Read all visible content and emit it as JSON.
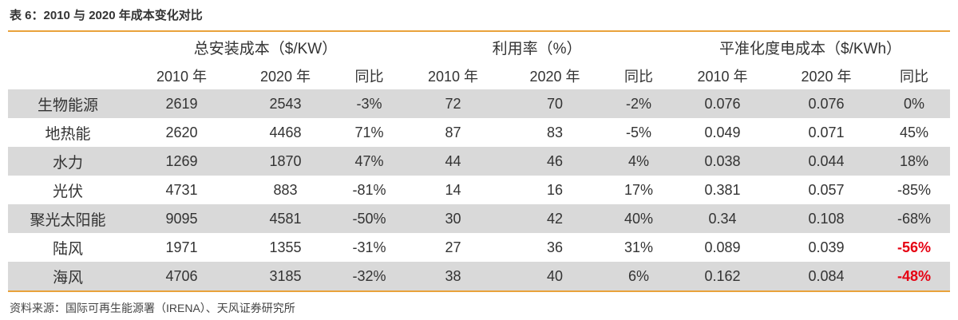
{
  "title": "表 6：2010 与 2020 年成本变化对比",
  "table": {
    "group_headers": [
      "总安装成本（$/KW）",
      "利用率（%）",
      "平准化度电成本（$/KWh）"
    ],
    "sub_headers": [
      "2010 年",
      "2020 年",
      "同比",
      "2010 年",
      "2020 年",
      "同比",
      "2010 年",
      "2020 年",
      "同比"
    ],
    "emphasis_color": "#e60012",
    "rows": [
      [
        "生物能源",
        "2619",
        "2543",
        "-3%",
        "72",
        "70",
        "-2%",
        "0.076",
        "0.076",
        "0%"
      ],
      [
        "地热能",
        "2620",
        "4468",
        "71%",
        "87",
        "83",
        "-5%",
        "0.049",
        "0.071",
        "45%"
      ],
      [
        "水力",
        "1269",
        "1870",
        "47%",
        "44",
        "46",
        "4%",
        "0.038",
        "0.044",
        "18%"
      ],
      [
        "光伏",
        "4731",
        "883",
        "-81%",
        "14",
        "16",
        "17%",
        "0.381",
        "0.057",
        "-85%"
      ],
      [
        "聚光太阳能",
        "9095",
        "4581",
        "-50%",
        "30",
        "42",
        "40%",
        "0.34",
        "0.108",
        "-68%"
      ],
      [
        "陆风",
        "1971",
        "1355",
        "-31%",
        "27",
        "36",
        "31%",
        "0.089",
        "0.039",
        {
          "text": "-56%",
          "emphasis": true
        }
      ],
      [
        "海风",
        "4706",
        "3185",
        "-32%",
        "38",
        "40",
        "6%",
        "0.162",
        "0.084",
        {
          "text": "-48%",
          "emphasis": true
        }
      ]
    ]
  },
  "source": "资料来源：国际可再生能源署（IRENA）、天风证券研究所"
}
